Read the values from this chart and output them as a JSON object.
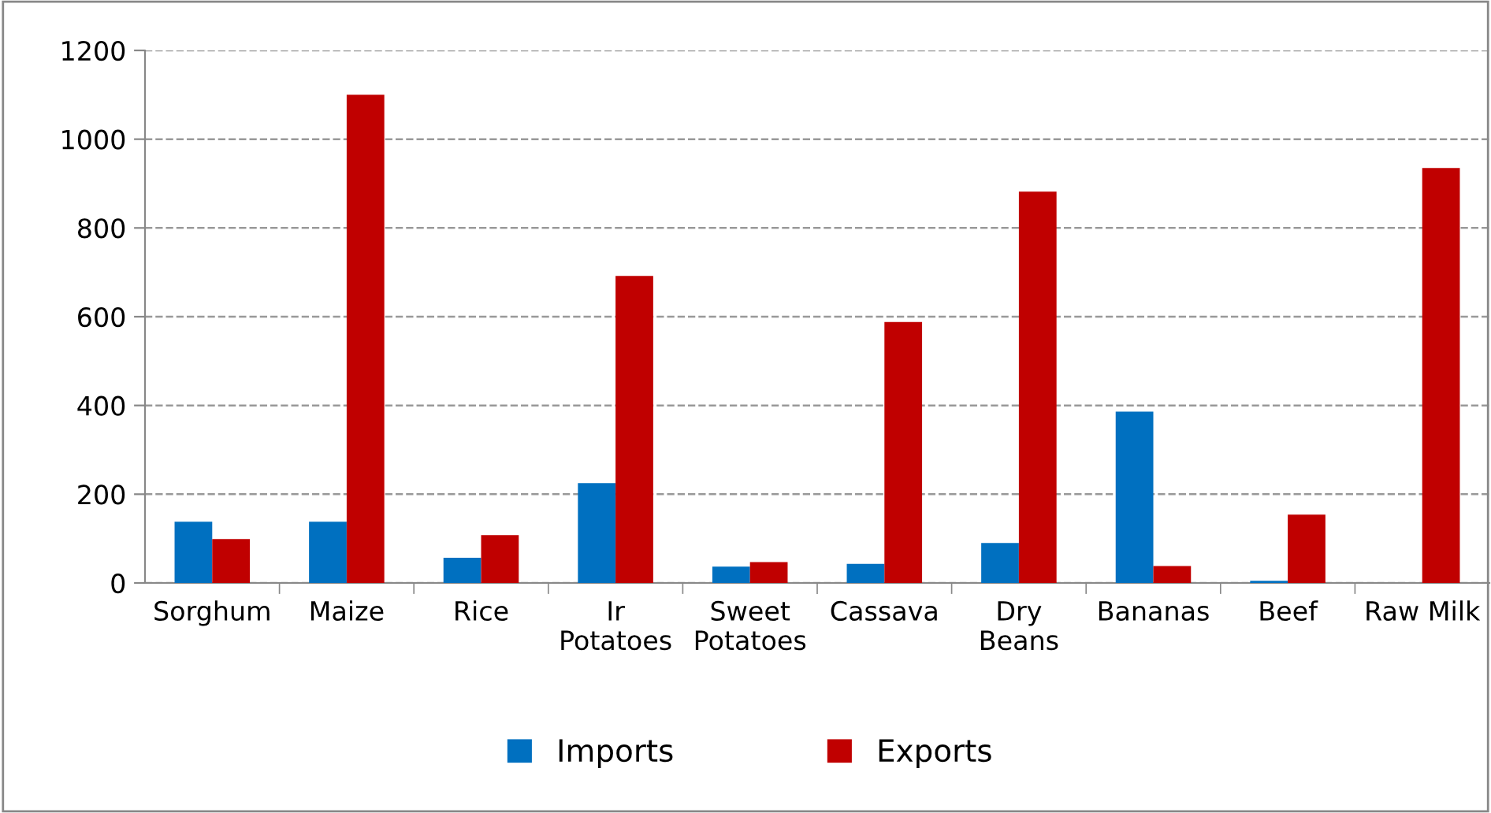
{
  "chart_data": {
    "type": "bar",
    "categories": [
      "Sorghum",
      "Maize",
      "Rice",
      "Ir\nPotatoes",
      "Sweet\nPotatoes",
      "Cassava",
      "Dry\nBeans",
      "Bananas",
      "Beef",
      "Raw Milk"
    ],
    "series": [
      {
        "name": "Imports",
        "color": "#0070c0",
        "values": [
          138,
          138,
          57,
          225,
          37,
          43,
          90,
          386,
          5,
          0
        ]
      },
      {
        "name": "Exports",
        "color": "#c00000",
        "values": [
          99,
          1100,
          108,
          692,
          47,
          588,
          882,
          38,
          154,
          935
        ]
      }
    ],
    "ylim": [
      0,
      1200
    ],
    "yticks": [
      0,
      200,
      400,
      600,
      800,
      1000,
      1200
    ],
    "grid": "y",
    "legend": "bottom"
  }
}
